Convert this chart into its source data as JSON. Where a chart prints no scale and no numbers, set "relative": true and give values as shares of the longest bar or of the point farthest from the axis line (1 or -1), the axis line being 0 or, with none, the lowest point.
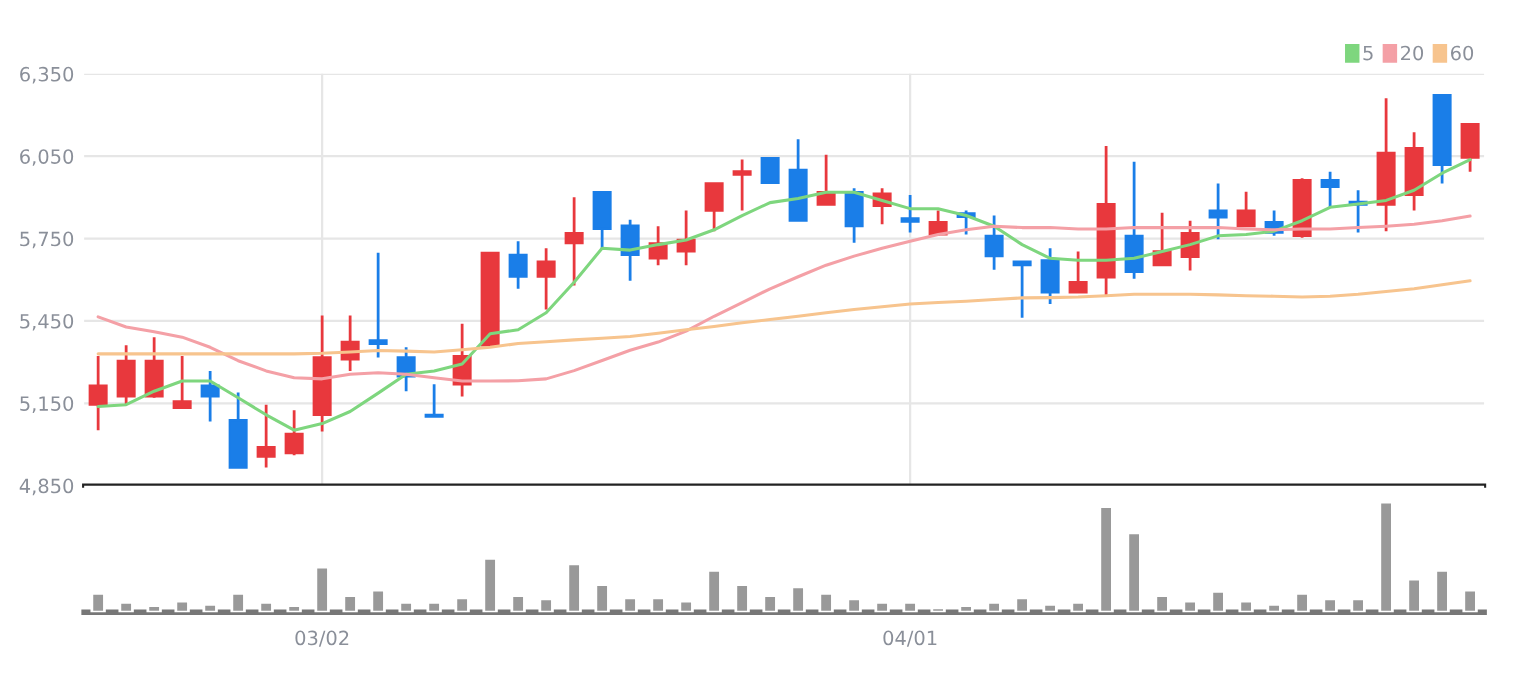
{
  "chart_data": [
    {
      "type": "candlestick",
      "categories": [
        null,
        null,
        null,
        null,
        null,
        null,
        null,
        null,
        null,
        null,
        null,
        null,
        null,
        null,
        null,
        null,
        null,
        null,
        null,
        null,
        null,
        null,
        null,
        null,
        null,
        null,
        null,
        null,
        null,
        null,
        null,
        null,
        null,
        null,
        null,
        null,
        null,
        null,
        null,
        null,
        null,
        null,
        null,
        null,
        null,
        null,
        null,
        null,
        null,
        null
      ],
      "ohlc": [
        [
          5145,
          5322,
          5052,
          5214
        ],
        [
          5175,
          5361,
          5145,
          5305
        ],
        [
          5175,
          5391,
          5170,
          5305
        ],
        [
          5133,
          5322,
          5133,
          5157
        ],
        [
          5214,
          5268,
          5084,
          5175
        ],
        [
          5089,
          5189,
          4916,
          4916
        ],
        [
          4956,
          5145,
          4916,
          4990
        ],
        [
          4968,
          5125,
          4961,
          5039
        ],
        [
          5108,
          5470,
          5047,
          5317
        ],
        [
          5310,
          5470,
          5268,
          5374
        ],
        [
          5379,
          5698,
          5317,
          5366
        ],
        [
          5317,
          5354,
          5194,
          5248
        ],
        [
          5108,
          5219,
          5101,
          5101
        ],
        [
          5219,
          5440,
          5175,
          5322
        ],
        [
          5361,
          5698,
          5361,
          5698
        ],
        [
          5691,
          5740,
          5567,
          5611
        ],
        [
          5611,
          5715,
          5492,
          5666
        ],
        [
          5733,
          5901,
          5579,
          5770
        ],
        [
          5919,
          5919,
          5710,
          5785
        ],
        [
          5797,
          5819,
          5596,
          5691
        ],
        [
          5678,
          5795,
          5653,
          5733
        ],
        [
          5703,
          5852,
          5653,
          5745
        ],
        [
          5852,
          5951,
          5777,
          5951
        ],
        [
          5983,
          6038,
          5852,
          5995
        ],
        [
          6043,
          6043,
          5953,
          5953
        ],
        [
          6000,
          6112,
          5815,
          5815
        ],
        [
          5874,
          6055,
          5874,
          5919
        ],
        [
          5919,
          5933,
          5735,
          5795
        ],
        [
          5869,
          5933,
          5802,
          5914
        ],
        [
          5824,
          5909,
          5772,
          5812
        ],
        [
          5765,
          5852,
          5760,
          5810
        ],
        [
          5842,
          5852,
          5765,
          5829
        ],
        [
          5760,
          5834,
          5636,
          5686
        ],
        [
          5666,
          5666,
          5462,
          5653
        ],
        [
          5671,
          5715,
          5512,
          5554
        ],
        [
          5554,
          5703,
          5554,
          5591
        ],
        [
          5609,
          6087,
          5537,
          5876
        ],
        [
          5760,
          6030,
          5604,
          5629
        ],
        [
          5653,
          5844,
          5653,
          5703
        ],
        [
          5683,
          5815,
          5634,
          5770
        ],
        [
          5852,
          5951,
          5748,
          5827
        ],
        [
          5795,
          5921,
          5795,
          5852
        ],
        [
          5810,
          5852,
          5760,
          5772
        ],
        [
          5760,
          5970,
          5753,
          5963
        ],
        [
          5963,
          5993,
          5864,
          5938
        ],
        [
          5884,
          5926,
          5772,
          5874
        ],
        [
          5874,
          6261,
          5777,
          6062
        ],
        [
          5909,
          6137,
          5852,
          6080
        ],
        [
          6273,
          6273,
          5951,
          6018
        ],
        [
          6045,
          6167,
          5993,
          6167
        ]
      ],
      "colors": [
        "#e8383d",
        "#e8383d",
        "#e8383d",
        "#e8383d",
        "#1a7ee8",
        "#1a7ee8",
        "#e8383d",
        "#e8383d",
        "#e8383d",
        "#e8383d",
        "#1a7ee8",
        "#1a7ee8",
        "#1a7ee8",
        "#e8383d",
        "#e8383d",
        "#1a7ee8",
        "#e8383d",
        "#e8383d",
        "#1a7ee8",
        "#1a7ee8",
        "#e8383d",
        "#e8383d",
        "#e8383d",
        "#e8383d",
        "#1a7ee8",
        "#1a7ee8",
        "#e8383d",
        "#1a7ee8",
        "#e8383d",
        "#1a7ee8",
        "#e8383d",
        "#1a7ee8",
        "#1a7ee8",
        "#1a7ee8",
        "#1a7ee8",
        "#e8383d",
        "#e8383d",
        "#1a7ee8",
        "#e8383d",
        "#e8383d",
        "#1a7ee8",
        "#e8383d",
        "#1a7ee8",
        "#e8383d",
        "#1a7ee8",
        "#1a7ee8",
        "#e8383d",
        "#e8383d",
        "#1a7ee8",
        "#e8383d"
      ],
      "series": [
        {
          "name": "5",
          "type": "line",
          "color": "#7ed67e",
          "values": [
            5138,
            5145,
            5194,
            5231,
            5231,
            5170,
            5108,
            5052,
            5076,
            5120,
            5187,
            5256,
            5268,
            5293,
            5403,
            5418,
            5480,
            5591,
            5715,
            5708,
            5728,
            5745,
            5782,
            5834,
            5881,
            5896,
            5919,
            5919,
            5889,
            5859,
            5859,
            5834,
            5795,
            5728,
            5678,
            5671,
            5671,
            5678,
            5703,
            5728,
            5760,
            5765,
            5777,
            5815,
            5864,
            5876,
            5889,
            5926,
            5988,
            6038
          ]
        },
        {
          "name": "20",
          "type": "line",
          "color": "#f4a0a6",
          "values": [
            5465,
            5428,
            5411,
            5391,
            5354,
            5305,
            5268,
            5243,
            5239,
            5256,
            5261,
            5256,
            5243,
            5231,
            5231,
            5232,
            5239,
            5269,
            5306,
            5343,
            5373,
            5413,
            5467,
            5517,
            5567,
            5611,
            5653,
            5686,
            5715,
            5740,
            5765,
            5782,
            5795,
            5790,
            5790,
            5785,
            5785,
            5790,
            5790,
            5790,
            5790,
            5785,
            5782,
            5785,
            5785,
            5790,
            5795,
            5802,
            5815,
            5832
          ]
        },
        {
          "name": "60",
          "type": "line",
          "color": "#f7c48e",
          "values": [
            5330,
            5330,
            5330,
            5330,
            5330,
            5330,
            5330,
            5330,
            5332,
            5337,
            5342,
            5340,
            5337,
            5345,
            5354,
            5368,
            5374,
            5381,
            5387,
            5393,
            5405,
            5418,
            5430,
            5443,
            5455,
            5467,
            5480,
            5492,
            5502,
            5512,
            5517,
            5522,
            5528,
            5534,
            5535,
            5537,
            5542,
            5547,
            5547,
            5547,
            5545,
            5542,
            5540,
            5537,
            5540,
            5547,
            5557,
            5567,
            5582,
            5596
          ]
        }
      ],
      "ylim": [
        4850,
        6350
      ],
      "yticks": [
        {
          "value": 4850,
          "label": "4,850"
        },
        {
          "value": 5150,
          "label": "5,150"
        },
        {
          "value": 5450,
          "label": "5,450"
        },
        {
          "value": 5750,
          "label": "5,750"
        },
        {
          "value": 6050,
          "label": "6,050"
        },
        {
          "value": 6350,
          "label": "6,350"
        }
      ],
      "grid": true,
      "legend": "top right",
      "tick_labels": "y"
    },
    {
      "type": "bar",
      "relative": true,
      "color": "#999999",
      "tick_labels": "x",
      "categories": [
        null,
        null,
        null,
        null,
        null,
        null,
        null,
        null,
        "03/02",
        null,
        null,
        null,
        null,
        null,
        null,
        null,
        null,
        null,
        null,
        null,
        null,
        null,
        null,
        null,
        null,
        null,
        null,
        null,
        null,
        "04/01",
        null,
        null,
        null,
        null,
        null,
        null,
        null,
        null,
        null,
        null,
        null,
        null,
        null,
        null,
        null,
        null,
        null,
        null,
        null,
        null
      ],
      "values": [
        0.17,
        0.09,
        0.06,
        0.1,
        0.07,
        0.17,
        0.09,
        0.06,
        0.41,
        0.15,
        0.2,
        0.09,
        0.09,
        0.13,
        0.49,
        0.15,
        0.12,
        0.44,
        0.25,
        0.13,
        0.13,
        0.1,
        0.38,
        0.25,
        0.15,
        0.23,
        0.17,
        0.12,
        0.09,
        0.09,
        0.04,
        0.06,
        0.09,
        0.13,
        0.07,
        0.09,
        0.96,
        0.72,
        0.15,
        0.1,
        0.19,
        0.1,
        0.07,
        0.17,
        0.12,
        0.12,
        1,
        0.3,
        0.38,
        0.2
      ]
    }
  ]
}
